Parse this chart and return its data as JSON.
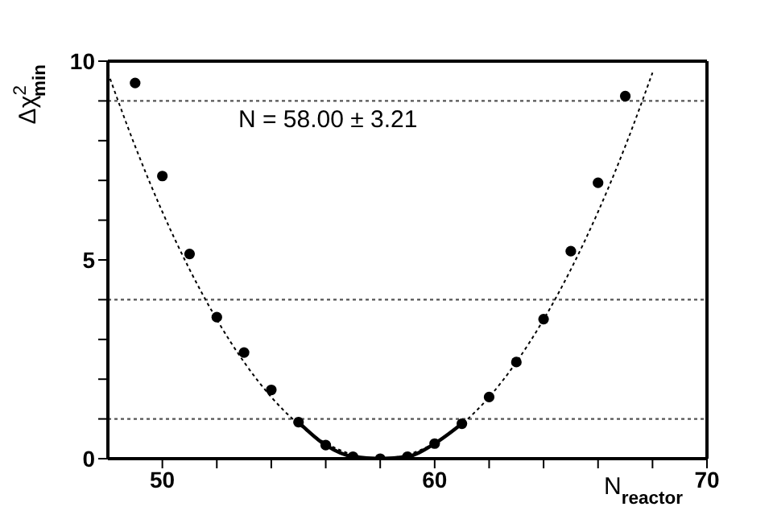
{
  "chart_data": {
    "type": "scatter",
    "xlabel": "N$_{reactor}$",
    "ylabel": "Δχ$^{2}$$_{min}$",
    "annotations": [
      "N = 58.00 ± 3.21"
    ],
    "x": [
      49,
      50,
      51,
      52,
      53,
      54,
      55,
      56,
      57,
      58,
      59,
      60,
      61,
      62,
      63,
      64,
      65,
      66,
      67
    ],
    "series": [
      {
        "color": "#000000",
        "marker": "circle",
        "values": [
          9.45,
          7.11,
          5.15,
          3.56,
          2.67,
          1.73,
          0.92,
          0.34,
          0.05,
          0,
          0.05,
          0.38,
          0.88,
          1.55,
          2.43,
          3.51,
          5.22,
          6.94,
          9.12
        ]
      },
      {
        "type": "line",
        "color": "#000000",
        "line_style": "dotted",
        "marker": "none",
        "x": [
          48,
          49,
          50,
          51,
          52,
          53,
          54,
          55,
          56,
          57,
          58,
          59,
          60,
          61,
          62,
          63,
          64,
          65,
          66,
          67,
          68
        ],
        "values": [
          9.71,
          7.86,
          6.21,
          4.76,
          3.5,
          2.43,
          1.55,
          0.87,
          0.39,
          0.1,
          0,
          0.1,
          0.39,
          0.87,
          1.55,
          2.43,
          3.5,
          4.76,
          6.21,
          7.86,
          9.71
        ]
      },
      {
        "type": "line",
        "color": "#000000",
        "line_style": "solid",
        "marker": "none",
        "x": [
          55,
          56,
          57,
          58,
          59,
          60,
          61
        ],
        "values": [
          0.92,
          0.34,
          0.05,
          0,
          0.05,
          0.38,
          0.88
        ]
      }
    ],
    "xlim": [
      48,
      70
    ],
    "xticks": [
      50,
      {
        "value": 52,
        "label": null
      },
      {
        "value": 54,
        "label": null
      },
      {
        "value": 56,
        "label": null
      },
      {
        "value": 58,
        "label": null
      },
      60,
      {
        "value": 62,
        "label": null
      },
      {
        "value": 64,
        "label": null
      },
      {
        "value": 66,
        "label": null
      },
      {
        "value": 68,
        "label": null
      },
      70
    ],
    "ylim": [
      0,
      10
    ],
    "yticks": [
      0,
      {
        "value": 1,
        "label": null
      },
      {
        "value": 2,
        "label": null
      },
      {
        "value": 3,
        "label": null
      },
      {
        "value": 4,
        "label": null
      },
      5,
      {
        "value": 6,
        "label": null
      },
      {
        "value": 7,
        "label": null
      },
      {
        "value": 8,
        "label": null
      },
      {
        "value": 9,
        "label": null
      },
      10
    ],
    "ref_lines": [
      {
        "axis": "y",
        "value": 1,
        "color": "#555555",
        "line_style": "dotted"
      },
      {
        "axis": "y",
        "value": 4,
        "color": "#555555",
        "line_style": "dotted"
      },
      {
        "axis": "y",
        "value": 9,
        "color": "#555555",
        "line_style": "dotted"
      }
    ],
    "grid": false,
    "legend": false
  }
}
